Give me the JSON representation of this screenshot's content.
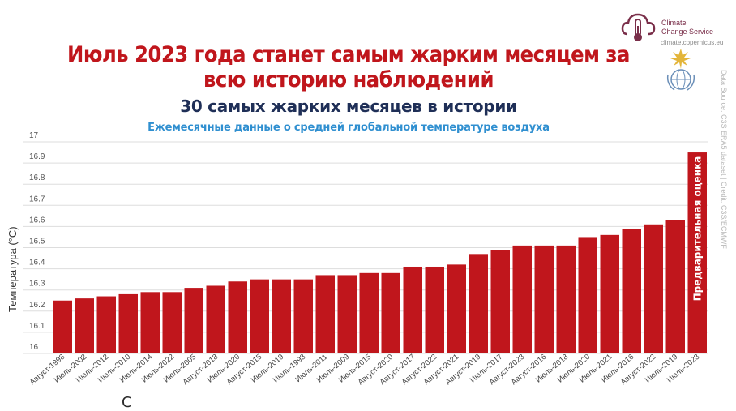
{
  "header": {
    "title": "Июль 2023 года станет самым жарким месяцем за всю историю наблюдений",
    "subtitle": "30 самых жарких месяцев в истории",
    "tagline": "Ежемесячные данные о средней глобальной температуре воздуха"
  },
  "branding": {
    "logo_line1": "Climate",
    "logo_line2": "Change Service",
    "logo_url": "climate.copernicus.eu",
    "credit": "Data Source: C3S ERA5 dataset | Credit: C3S/ECMWF",
    "logo_color": "#7a2f4a"
  },
  "colors": {
    "bar": "#c0161c",
    "grid": "#dddddd",
    "title": "#c0161c",
    "subtitle": "#1f2f57",
    "tagline": "#2f8fd0"
  },
  "chart_data": {
    "type": "bar",
    "title": "30 самых жарких месяцев в истории",
    "ylabel": "Температура (°C)",
    "xlabel": "",
    "ylim": [
      16,
      17
    ],
    "yticks": [
      16,
      16.1,
      16.2,
      16.3,
      16.4,
      16.5,
      16.6,
      16.7,
      16.8,
      16.9,
      17
    ],
    "grid": true,
    "categories": [
      "Август-1998",
      "Июль-2002",
      "Июль-2012",
      "Июль-2010",
      "Июль-2014",
      "Июль-2022",
      "Июль-2005",
      "Август-2018",
      "Июль-2020",
      "Август-2015",
      "Июль-2019",
      "Июль-1998",
      "Июль-2011",
      "Июль-2009",
      "Июль-2015",
      "Август-2020",
      "Август-2017",
      "Август-2022",
      "Август-2021",
      "Август-2019",
      "Июль-2017",
      "Август-2023",
      "Август-2016",
      "Июль-2018",
      "Июль-2020",
      "Июль-2021",
      "Июль-2016",
      "Август-2022",
      "Июль-2019",
      "Июль-2023"
    ],
    "values": [
      16.25,
      16.26,
      16.27,
      16.28,
      16.29,
      16.29,
      16.31,
      16.32,
      16.34,
      16.35,
      16.35,
      16.35,
      16.37,
      16.37,
      16.38,
      16.38,
      16.41,
      16.41,
      16.42,
      16.47,
      16.49,
      16.51,
      16.51,
      16.51,
      16.55,
      16.56,
      16.59,
      16.61,
      16.63,
      16.95
    ],
    "annotation": "Предварительная оценка"
  },
  "footer": {
    "text": "С"
  }
}
